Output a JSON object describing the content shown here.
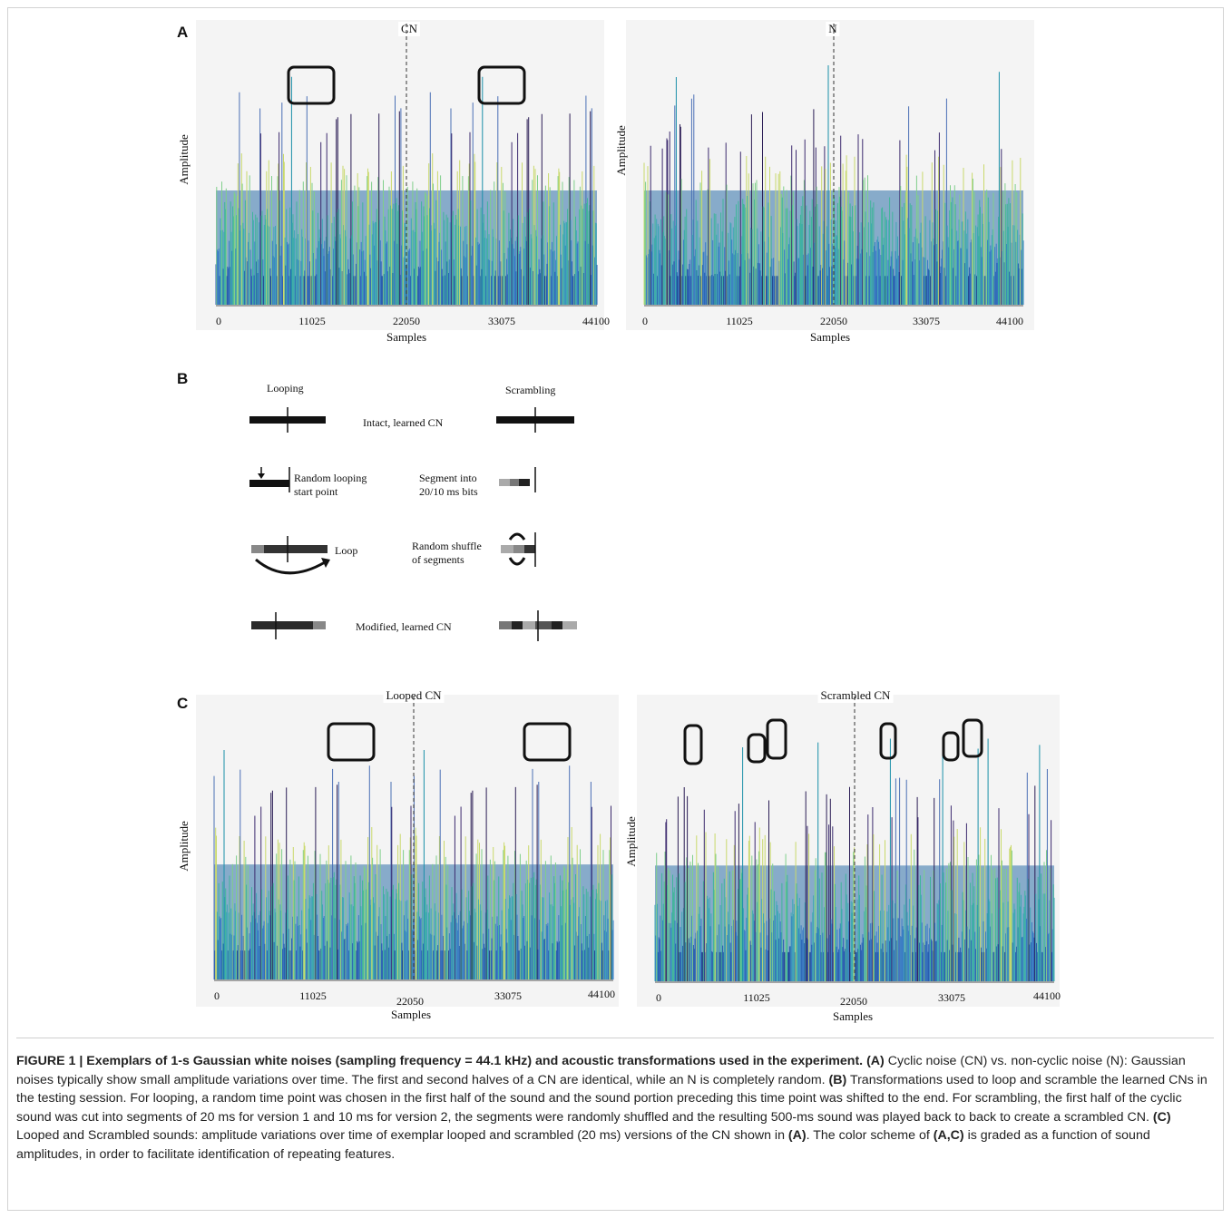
{
  "panels": {
    "A": {
      "letter": "A"
    },
    "B": {
      "letter": "B"
    },
    "C": {
      "letter": "C"
    }
  },
  "plots": [
    {
      "id": "cn",
      "title": "CN",
      "ylabel": "Amplitude",
      "xlabel": "Samples",
      "xticks": [
        "0",
        "11025",
        "22050",
        "33075",
        "44100"
      ]
    },
    {
      "id": "n",
      "title": "N",
      "ylabel": "Amplitude",
      "xlabel": "Samples",
      "xticks": [
        "0",
        "11025",
        "22050",
        "33075",
        "44100"
      ]
    },
    {
      "id": "looped",
      "title": "Looped CN",
      "ylabel": "Amplitude",
      "xlabel": "Samples",
      "xticks": [
        "0",
        "11025",
        "22050",
        "33075",
        "44100"
      ]
    },
    {
      "id": "scrambled",
      "title": "Scrambled CN",
      "ylabel": "Amplitude",
      "xlabel": "Samples",
      "xticks": [
        "0",
        "11025",
        "22050",
        "33075",
        "44100"
      ]
    }
  ],
  "diagram": {
    "looping_header": "Looping",
    "scrambling_header": "Scrambling",
    "intact": "Intact, learned CN",
    "random_start_1": "Random looping",
    "random_start_2": "start point",
    "segment_1": "Segment into",
    "segment_2": "20/10 ms bits",
    "loop": "Loop",
    "shuffle_1": "Random shuffle",
    "shuffle_2": "of segments",
    "modified": "Modified, learned CN"
  },
  "caption": {
    "label": "FIGURE 1 | Exemplars of 1-s Gaussian white noises (sampling frequency = 44.1 kHz) and acoustic transformations used in the experiment.",
    "a_ref": "(A)",
    "a_text": "Cyclic noise (CN) vs. non-cyclic noise (N): Gaussian noises typically show small amplitude variations over time. The first and second halves of a CN are identical, while an N is completely random.",
    "b_ref": "(B)",
    "b_text": "Transformations used to loop and scramble the learned CNs in the testing session. For looping, a random time point was chosen in the first half of the sound and the sound portion preceding this time point was shifted to the end. For scrambling, the first half of the cyclic sound was cut into segments of 20 ms for version 1 and 10 ms for version 2, the segments were randomly shuffled and the resulting 500-ms sound was played back to back to create a scrambled CN.",
    "c_ref": "(C)",
    "c_text": "Looped and Scrambled sounds: amplitude variations over time of exemplar looped and scrambled (20 ms) versions of the CN shown in",
    "c_ref2": "(A)",
    "c_text2": ". The color scheme of",
    "ac_ref": "(A,C)",
    "end_text": "is graded as a function of sound amplitudes, in order to facilitate identification of repeating features."
  },
  "colors": {
    "caption_highlight": "#b30000",
    "frame": "#d3d3d3"
  }
}
